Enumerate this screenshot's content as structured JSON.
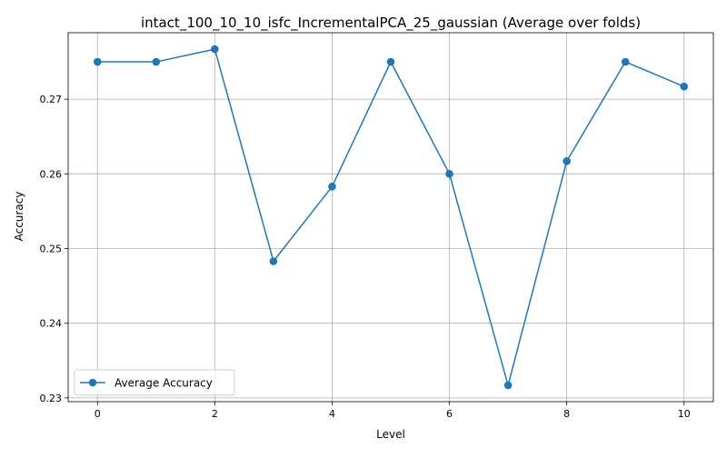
{
  "chart_data": {
    "type": "line",
    "title": "intact_100_10_10_isfc_IncrementalPCA_25_gaussian (Average over folds)",
    "xlabel": "Level",
    "ylabel": "Accuracy",
    "x": [
      0,
      1,
      2,
      3,
      4,
      5,
      6,
      7,
      8,
      9,
      10
    ],
    "series": [
      {
        "name": "Average Accuracy",
        "color": "#1f77b4",
        "marker": "circle",
        "values": [
          0.275,
          0.275,
          0.2767,
          0.2483,
          0.2583,
          0.275,
          0.26,
          0.2317,
          0.2617,
          0.275,
          0.2717
        ]
      }
    ],
    "xlim": [
      -0.5,
      10.5
    ],
    "ylim": [
      0.2295,
      0.2789
    ],
    "xticks": [
      0,
      2,
      4,
      6,
      8,
      10
    ],
    "xtick_labels": [
      "0",
      "2",
      "4",
      "6",
      "8",
      "10"
    ],
    "yticks": [
      0.23,
      0.24,
      0.25,
      0.26,
      0.27
    ],
    "ytick_labels": [
      "0.23",
      "0.24",
      "0.25",
      "0.26",
      "0.27"
    ],
    "grid": true,
    "legend_position": "lower-left"
  }
}
